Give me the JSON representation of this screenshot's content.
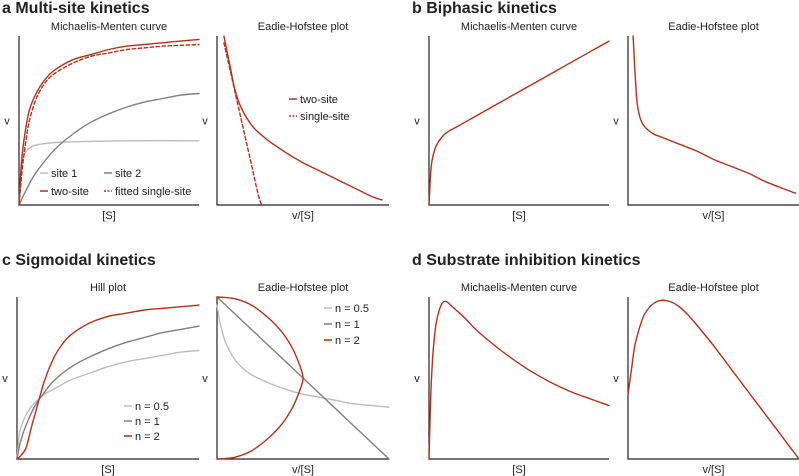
{
  "colors": {
    "red": "#b5301b",
    "dark_gray": "#7f7f7f",
    "light_gray": "#bdbdbd",
    "axis": "#222222"
  },
  "panels": {
    "a": {
      "title": "a Multi-site kinetics"
    },
    "b": {
      "title": "b Biphasic kinetics"
    },
    "c": {
      "title": "c Sigmoidal kinetics"
    },
    "d": {
      "title": "d Substrate inhibition kinetics"
    }
  },
  "chart_data": [
    {
      "id": "a1",
      "panel": "a",
      "type": "line",
      "title": "Michaelis-Menten curve",
      "xlabel": "[S]",
      "ylabel": "v",
      "xlim": [
        0,
        100
      ],
      "ylim": [
        0,
        100
      ],
      "legend_position": "bottom",
      "series": [
        {
          "name": "site 1",
          "color": "#bdbdbd",
          "dash": "solid",
          "x": [
            0,
            1,
            2,
            3,
            5,
            8,
            12,
            20,
            35,
            60,
            100
          ],
          "y": [
            0,
            17,
            26,
            30,
            33,
            35,
            36,
            37,
            37.5,
            38,
            38
          ]
        },
        {
          "name": "site 2",
          "color": "#7f7f7f",
          "dash": "solid",
          "x": [
            0,
            5,
            10,
            20,
            30,
            40,
            50,
            60,
            70,
            80,
            90,
            100
          ],
          "y": [
            0,
            11,
            20,
            33,
            42,
            49,
            54,
            58,
            61,
            63,
            65,
            66
          ]
        },
        {
          "name": "two-site",
          "color": "#b5301b",
          "dash": "solid",
          "x": [
            0,
            1,
            2,
            4,
            6,
            10,
            15,
            20,
            30,
            40,
            50,
            60,
            70,
            80,
            90,
            100
          ],
          "y": [
            0,
            20,
            32,
            47,
            57,
            67,
            75,
            80,
            86,
            89,
            92,
            94,
            95,
            96,
            97,
            98
          ]
        },
        {
          "name": "fitted single-site",
          "color": "#b5301b",
          "dash": "dashed",
          "x": [
            0,
            2,
            4,
            6,
            10,
            15,
            20,
            30,
            40,
            50,
            60,
            70,
            80,
            90,
            100
          ],
          "y": [
            0,
            23,
            39,
            51,
            64,
            73,
            78,
            84,
            88,
            90,
            92,
            93,
            94,
            94.5,
            95
          ]
        }
      ]
    },
    {
      "id": "a2",
      "panel": "a",
      "type": "line",
      "title": "Eadie-Hofstee plot",
      "xlabel": "v/[S]",
      "ylabel": "v",
      "xlim": [
        0,
        100
      ],
      "ylim": [
        0,
        100
      ],
      "legend_position": "top-right",
      "series": [
        {
          "name": "two-site",
          "color": "#b5301b",
          "dash": "solid",
          "x": [
            4,
            6,
            8,
            10,
            13,
            17,
            22,
            30,
            40,
            50,
            60,
            70,
            80,
            90,
            96
          ],
          "y": [
            100,
            90,
            80,
            70,
            60,
            52,
            45,
            38,
            31,
            25,
            20,
            15,
            10,
            5,
            3
          ]
        },
        {
          "name": "single-site",
          "color": "#b5301b",
          "dash": "dashed",
          "x": [
            4,
            8,
            12,
            16,
            20,
            24,
            26
          ],
          "y": [
            96,
            78,
            60,
            42,
            24,
            6,
            0
          ]
        }
      ]
    },
    {
      "id": "b1",
      "panel": "b",
      "type": "line",
      "title": "Michaelis-Menten curve",
      "xlabel": "[S]",
      "ylabel": "v",
      "xlim": [
        0,
        100
      ],
      "ylim": [
        0,
        100
      ],
      "legend_position": "none",
      "series": [
        {
          "name": "",
          "color": "#b5301b",
          "dash": "solid",
          "x": [
            0,
            1,
            2,
            4,
            7,
            10,
            15,
            20,
            30,
            40,
            50,
            60,
            70,
            80,
            90,
            100
          ],
          "y": [
            0,
            20,
            28,
            35,
            40,
            43,
            46,
            49,
            55,
            61,
            67,
            73,
            79,
            85,
            91,
            97
          ]
        }
      ]
    },
    {
      "id": "b2",
      "panel": "b",
      "type": "line",
      "title": "Eadie-Hofstee plot",
      "xlabel": "v/[S]",
      "ylabel": "v",
      "xlim": [
        0,
        100
      ],
      "ylim": [
        0,
        100
      ],
      "legend_position": "none",
      "series": [
        {
          "name": "",
          "color": "#b5301b",
          "dash": "solid",
          "x": [
            3,
            4,
            5,
            6,
            8,
            11,
            15,
            20,
            30,
            40,
            50,
            60,
            70,
            80,
            90,
            98
          ],
          "y": [
            100,
            80,
            64,
            56,
            49,
            45,
            42,
            40,
            36,
            32,
            27,
            23,
            19,
            14,
            10,
            7
          ]
        }
      ]
    },
    {
      "id": "c1",
      "panel": "c",
      "type": "line",
      "title": "Hill plot",
      "xlabel": "[S]",
      "ylabel": "v",
      "xlim": [
        0,
        100
      ],
      "ylim": [
        0,
        100
      ],
      "legend_position": "bottom-right",
      "series": [
        {
          "name": "n = 0.5",
          "color": "#bdbdbd",
          "dash": "solid",
          "x": [
            0,
            1,
            2,
            4,
            7,
            10,
            15,
            20,
            30,
            40,
            50,
            60,
            70,
            80,
            90,
            100
          ],
          "y": [
            0,
            13,
            19,
            25,
            31,
            35,
            40,
            43,
            49,
            53,
            57,
            60,
            62,
            64,
            66,
            67
          ]
        },
        {
          "name": "n = 1",
          "color": "#7f7f7f",
          "dash": "solid",
          "x": [
            0,
            2,
            5,
            10,
            15,
            20,
            30,
            40,
            50,
            60,
            70,
            80,
            90,
            100
          ],
          "y": [
            0,
            11,
            21,
            33,
            41,
            48,
            57,
            63,
            68,
            72,
            75,
            78,
            80,
            82
          ]
        },
        {
          "name": "n = 2",
          "color": "#b5301b",
          "dash": "solid",
          "x": [
            0,
            2,
            5,
            8,
            10,
            15,
            20,
            25,
            30,
            40,
            50,
            60,
            70,
            80,
            90,
            100
          ],
          "y": [
            0,
            2,
            7,
            20,
            28,
            48,
            62,
            71,
            77,
            84,
            88,
            90,
            92,
            93,
            94,
            95
          ]
        }
      ]
    },
    {
      "id": "c2",
      "panel": "c",
      "type": "line",
      "title": "Eadie-Hofstee plot",
      "xlabel": "v/[S]",
      "ylabel": "v",
      "xlim": [
        0,
        100
      ],
      "ylim": [
        0,
        100
      ],
      "legend_position": "top-right",
      "series": [
        {
          "name": "n = 0.5",
          "color": "#bdbdbd",
          "dash": "solid",
          "x": [
            0,
            2,
            5,
            10,
            15,
            20,
            30,
            40,
            50,
            60,
            70,
            80,
            90,
            100
          ],
          "y": [
            95,
            83,
            72,
            62,
            56,
            52,
            47,
            43,
            40,
            38,
            36,
            34,
            33,
            32
          ]
        },
        {
          "name": "n = 1",
          "color": "#7f7f7f",
          "dash": "solid",
          "x": [
            0,
            100
          ],
          "y": [
            100,
            0
          ]
        },
        {
          "name": "n = 2",
          "color": "#b5301b",
          "dash": "solid",
          "x": [
            0,
            10,
            20,
            30,
            38,
            44,
            48,
            50,
            48,
            44,
            38,
            30,
            20,
            10,
            0
          ],
          "y": [
            100,
            99,
            95,
            87,
            78,
            68,
            58,
            50,
            42,
            32,
            22,
            13,
            5,
            1,
            0
          ]
        }
      ]
    },
    {
      "id": "d1",
      "panel": "d",
      "type": "line",
      "title": "Michaelis-Menten curve",
      "xlabel": "[S]",
      "ylabel": "v",
      "xlim": [
        0,
        100
      ],
      "ylim": [
        0,
        100
      ],
      "legend_position": "none",
      "series": [
        {
          "name": "",
          "color": "#b5301b",
          "dash": "solid",
          "x": [
            0,
            1,
            2,
            3,
            4,
            6,
            8,
            10,
            12,
            15,
            20,
            25,
            30,
            40,
            50,
            60,
            70,
            80,
            90,
            100
          ],
          "y": [
            0,
            40,
            62,
            75,
            84,
            93,
            97,
            97,
            95,
            92,
            87,
            81,
            76,
            67,
            59,
            52,
            46,
            41,
            37,
            33
          ]
        }
      ]
    },
    {
      "id": "d2",
      "panel": "d",
      "type": "line",
      "title": "Eadie-Hofstee plot",
      "xlabel": "v/[S]",
      "ylabel": "v",
      "xlim": [
        0,
        100
      ],
      "ylim": [
        0,
        100
      ],
      "legend_position": "none",
      "series": [
        {
          "name": "",
          "color": "#b5301b",
          "dash": "solid",
          "x": [
            0,
            2,
            4,
            7,
            10,
            15,
            20,
            25,
            30,
            35,
            40,
            50,
            60,
            70,
            80,
            90,
            100
          ],
          "y": [
            40,
            55,
            70,
            82,
            90,
            96,
            98,
            97,
            94,
            89,
            83,
            70,
            56,
            42,
            28,
            14,
            0
          ]
        }
      ]
    }
  ]
}
